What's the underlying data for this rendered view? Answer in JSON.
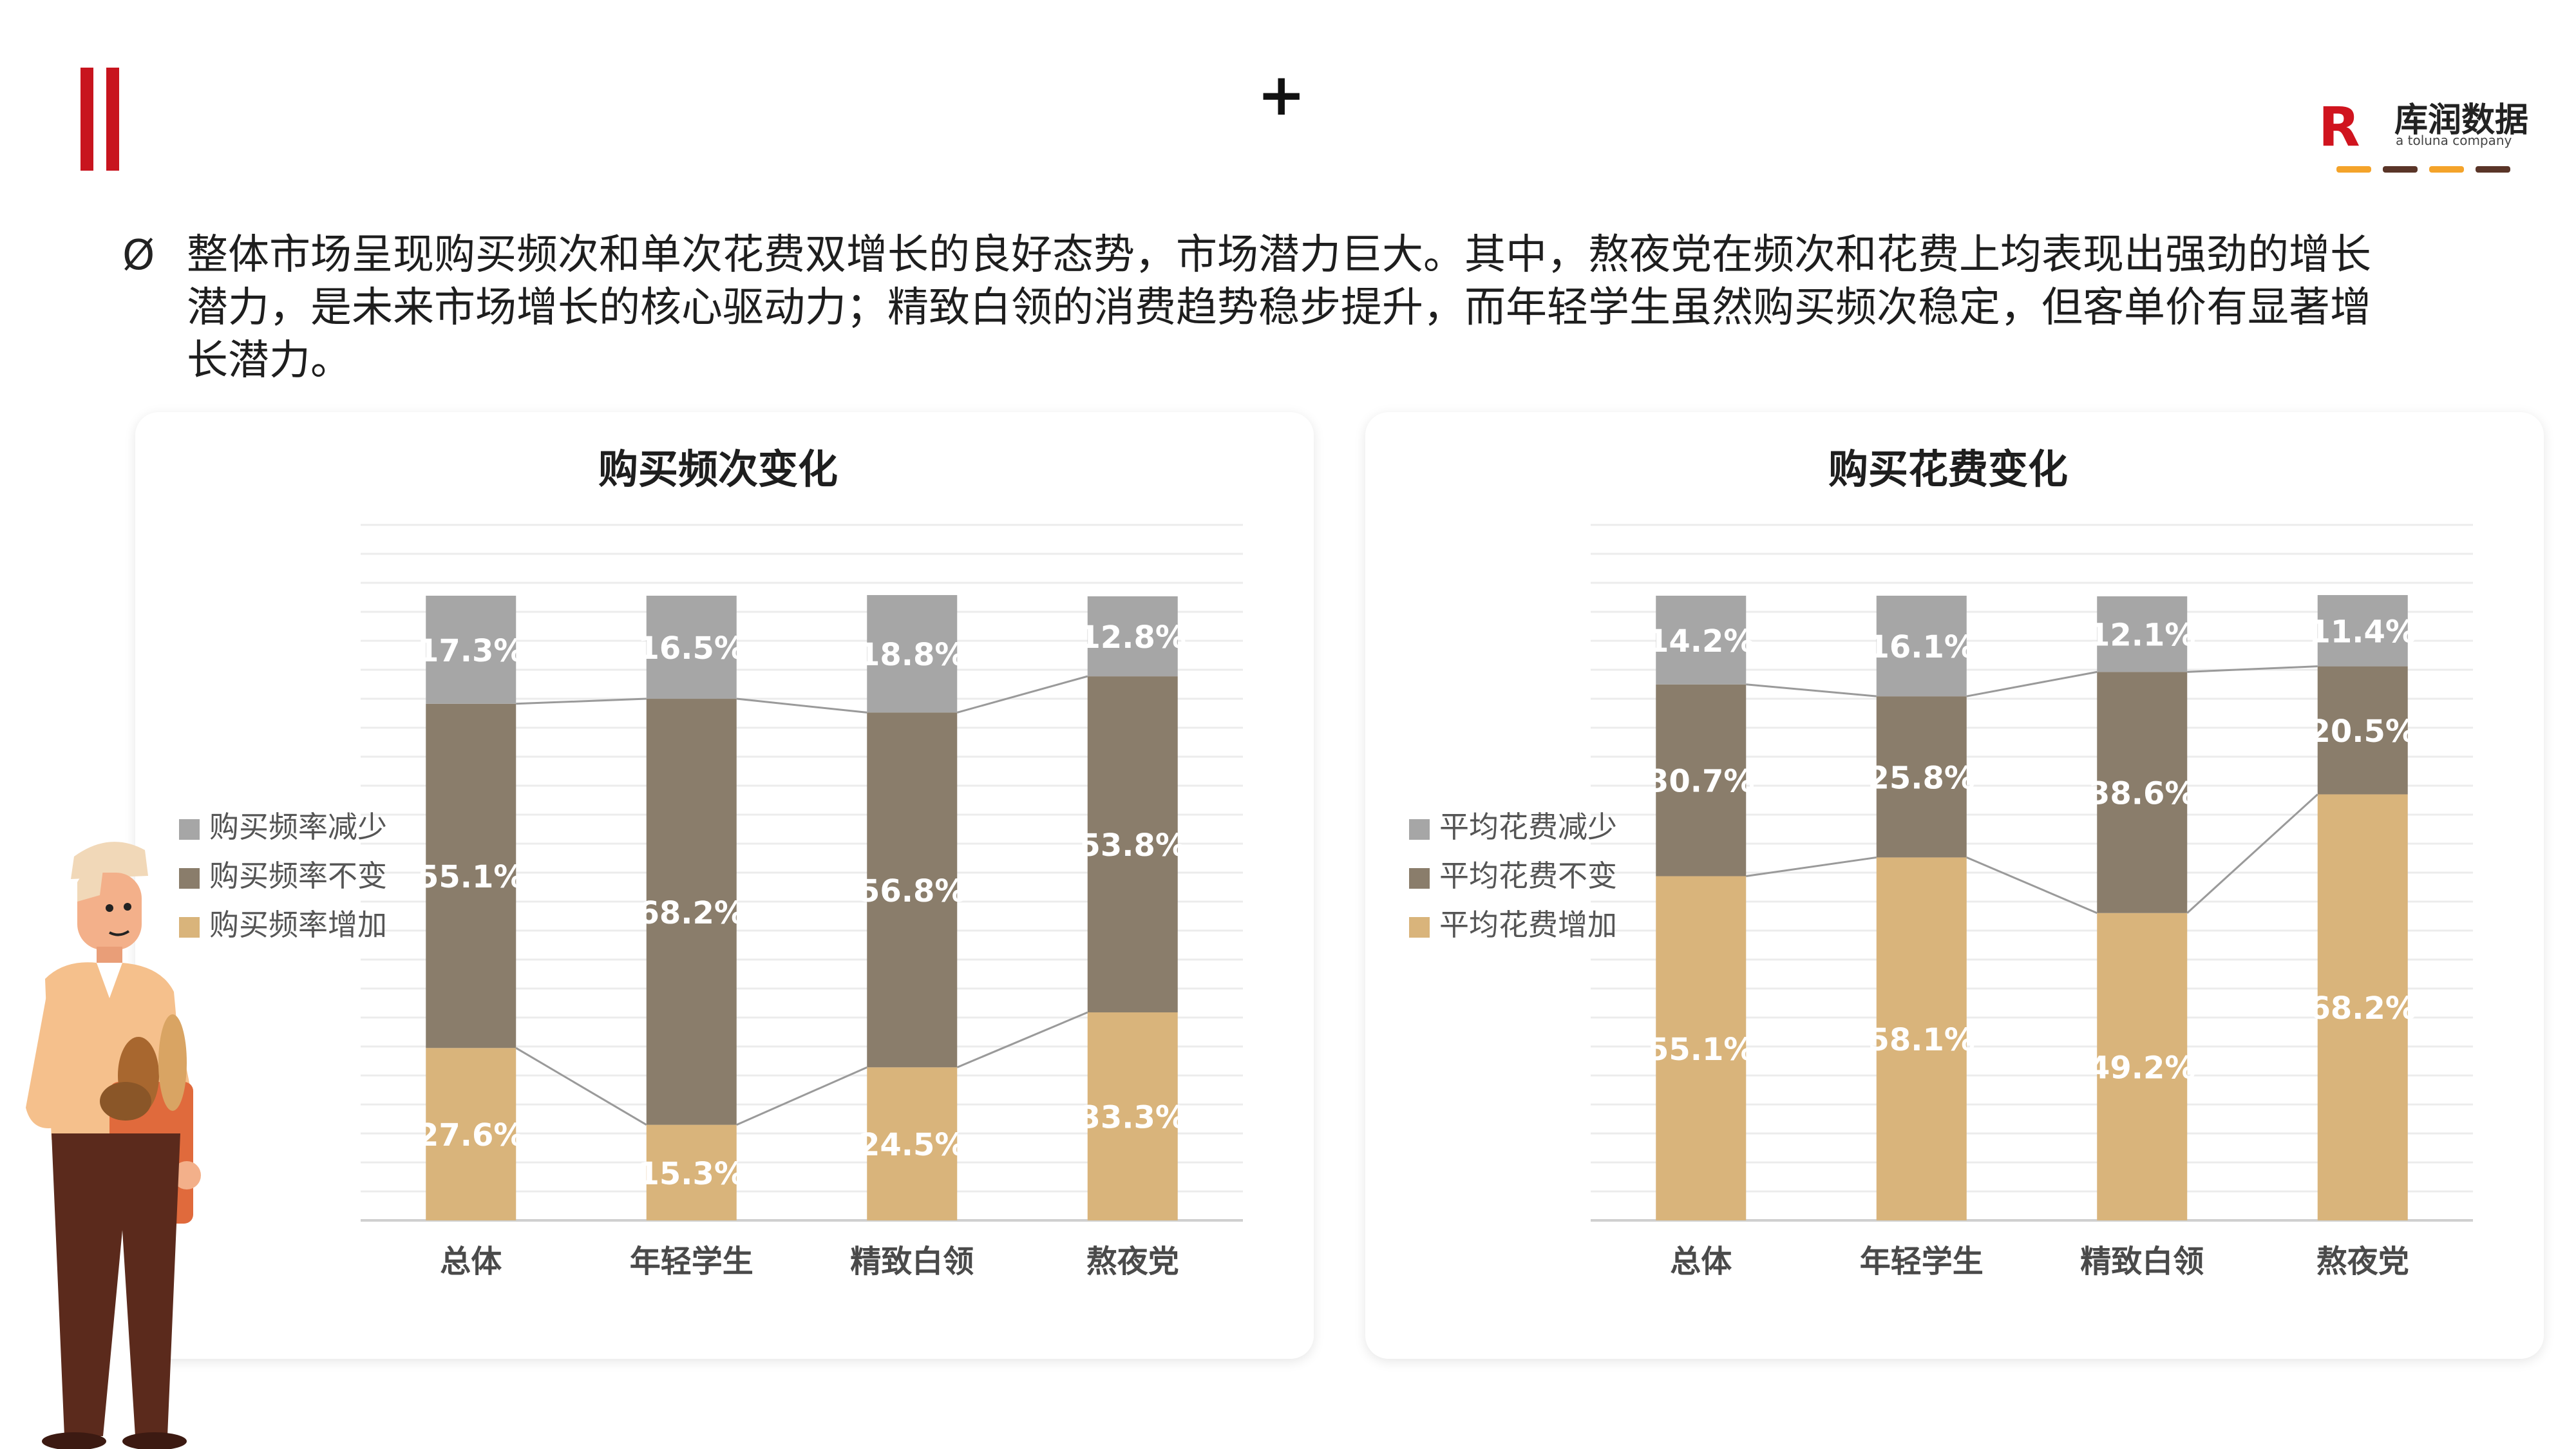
{
  "header": {
    "plus_sign": "+",
    "logo": {
      "mark": "R",
      "name": "库润数据",
      "tagline": "a toluna company"
    }
  },
  "summary": {
    "bullet": "Ø",
    "text": "整体市场呈现购买频次和单次花费双增长的良好态势，市场潜力巨大。其中，熬夜党在频次和花费上均表现出强劲的增长潜力，是未来市场增长的核心驱动力；精致白领的消费趋势稳步提升，而年轻学生虽然购买频次稳定，但客单价有显著增长潜力。"
  },
  "colors": {
    "increase": "#d9b47b",
    "same": "#8a7d6b",
    "decrease": "#a6a6a6",
    "brand_red": "#c8141e",
    "logo_lines": [
      "#f4a32a",
      "#5a3528",
      "#f4a32a",
      "#5a3528"
    ]
  },
  "chart_data": [
    {
      "type": "bar",
      "stacked": true,
      "title": "购买频次变化",
      "categories": [
        "总体",
        "年轻学生",
        "精致白领",
        "熬夜党"
      ],
      "series": [
        {
          "name": "购买频率增加",
          "values": [
            27.6,
            15.3,
            24.5,
            33.3
          ]
        },
        {
          "name": "购买频率不变",
          "values": [
            55.1,
            68.2,
            56.8,
            53.8
          ]
        },
        {
          "name": "购买频率减少",
          "values": [
            17.3,
            16.5,
            18.8,
            12.8
          ]
        }
      ],
      "legend_placement": "left",
      "grid": true
    },
    {
      "type": "bar",
      "stacked": true,
      "title": "购买花费变化",
      "categories": [
        "总体",
        "年轻学生",
        "精致白领",
        "熬夜党"
      ],
      "series": [
        {
          "name": "平均花费增加",
          "values": [
            55.1,
            58.1,
            49.2,
            68.2
          ]
        },
        {
          "name": "平均花费不变",
          "values": [
            30.7,
            25.8,
            38.6,
            20.5
          ]
        },
        {
          "name": "平均花费减少",
          "values": [
            14.2,
            16.1,
            12.1,
            11.4
          ]
        }
      ],
      "legend_placement": "left",
      "grid": true
    }
  ]
}
